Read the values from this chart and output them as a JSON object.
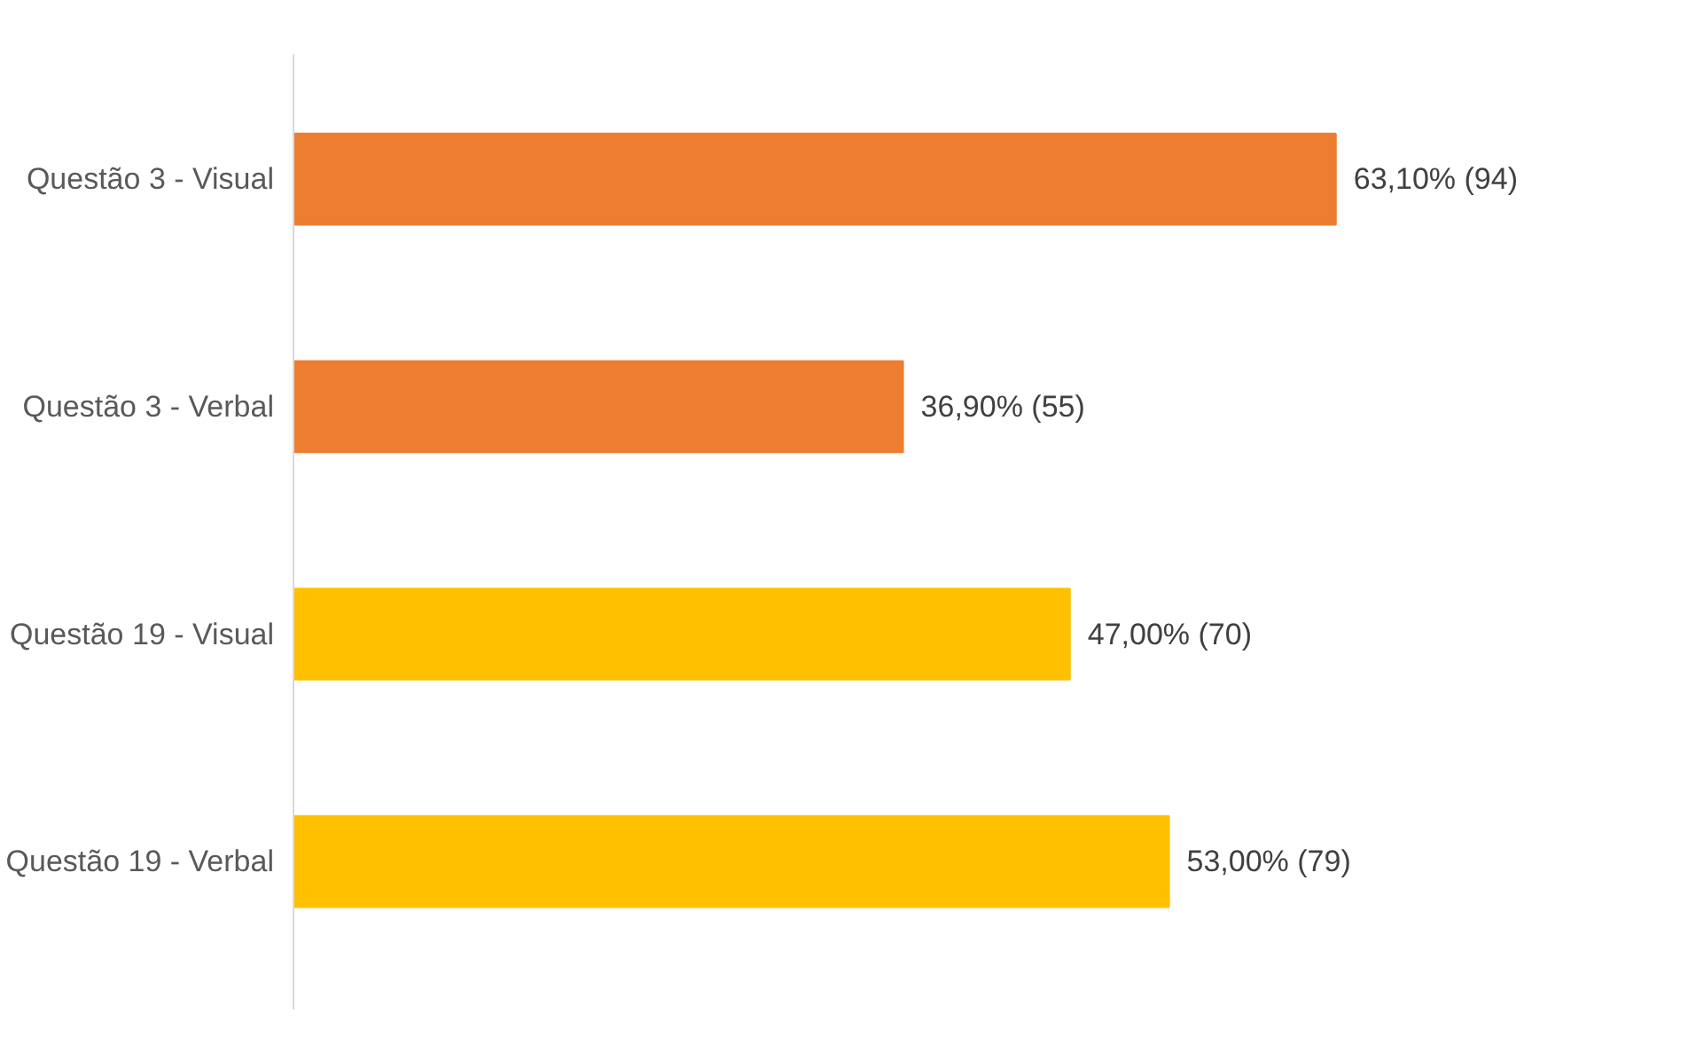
{
  "chart_data": {
    "type": "bar",
    "orientation": "horizontal",
    "categories": [
      "Questão 3 - Visual",
      "Questão 3 - Verbal",
      "Questão 19 - Visual",
      "Questão 19 - Verbal"
    ],
    "values": [
      63.1,
      36.9,
      47.0,
      53.0
    ],
    "colors": [
      "#ed7d31",
      "#ed7d31",
      "#ffc000",
      "#ffc000"
    ],
    "value_labels": [
      "63,10% (94)",
      "36,90% (55)",
      "47,00% (70)",
      "53,00% (79)"
    ],
    "grid": false
  }
}
